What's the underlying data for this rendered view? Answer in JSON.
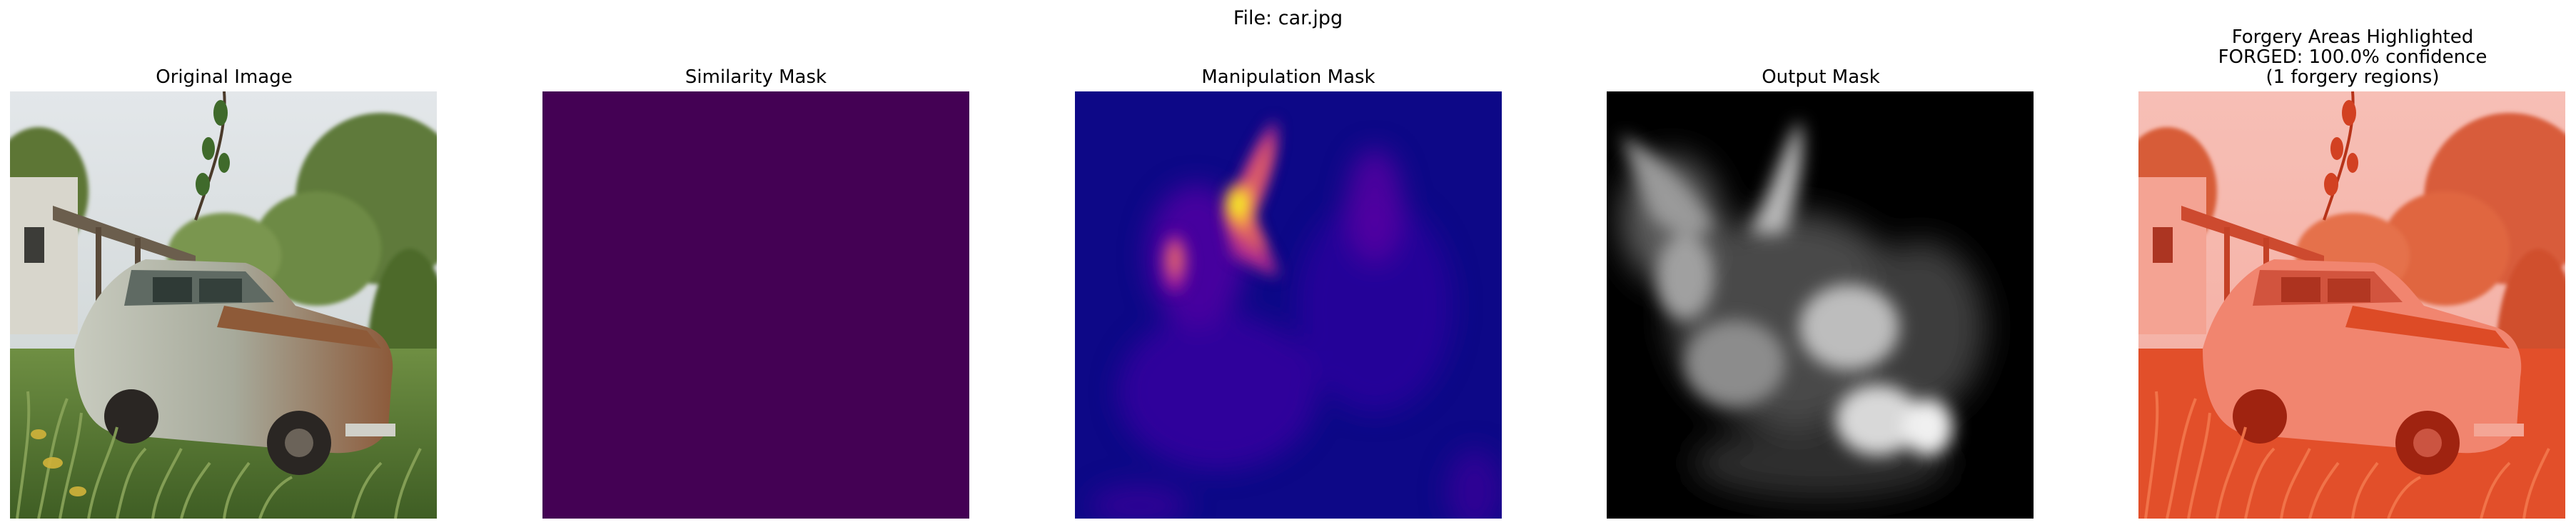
{
  "figure": {
    "suptitle": "File: car.jpg"
  },
  "panels": [
    {
      "title_lines": [
        "Original Image"
      ],
      "colormap": "photo"
    },
    {
      "title_lines": [
        "Similarity Mask"
      ],
      "colormap": "viridis",
      "fill_color": "#440154"
    },
    {
      "title_lines": [
        "Manipulation Mask"
      ],
      "colormap": "plasma",
      "base_color": "#0d0887"
    },
    {
      "title_lines": [
        "Output Mask"
      ],
      "colormap": "gray",
      "base_color": "#000000"
    },
    {
      "title_lines": [
        "Forgery Areas Highlighted",
        "FORGED: 100.0% confidence",
        "(1 forgery regions)"
      ],
      "colormap": "photo-red-overlay",
      "overlay_color": "#ff2000"
    }
  ]
}
